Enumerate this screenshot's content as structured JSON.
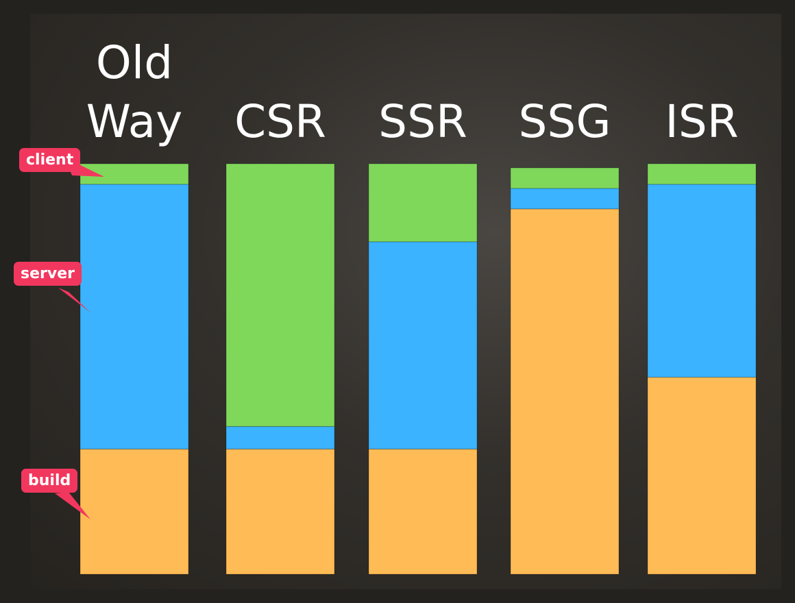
{
  "chart_data": {
    "type": "bar",
    "stacked": true,
    "categories": [
      "Old Way",
      "CSR",
      "SSR",
      "SSG",
      "ISR"
    ],
    "series": [
      {
        "name": "build",
        "color": "#ffbb55",
        "values": [
          30.5,
          30.5,
          30.5,
          89,
          48
        ]
      },
      {
        "name": "server",
        "color": "#3bb3ff",
        "values": [
          64.5,
          5.5,
          50.5,
          5,
          47
        ]
      },
      {
        "name": "client",
        "color": "#7fd85a",
        "values": [
          5,
          64,
          19,
          5,
          5
        ]
      }
    ],
    "ylim": [
      0,
      100
    ]
  },
  "colors": {
    "background": "#24221f",
    "callout": "#f2375e"
  }
}
